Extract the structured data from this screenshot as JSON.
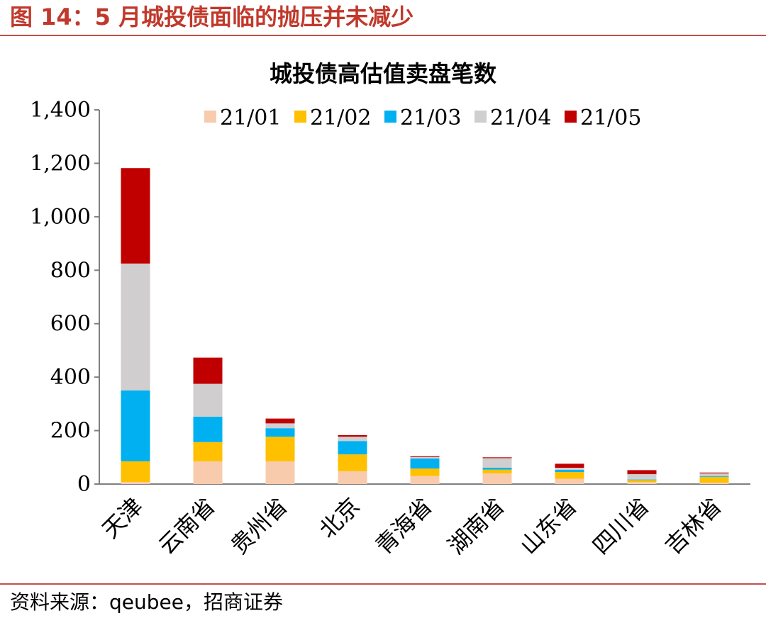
{
  "figure": {
    "title": "图 14：5 月城投债面临的抛压并未减少",
    "source": "资料来源：qeubee，招商证券"
  },
  "colors": {
    "accent": "#c0504d",
    "series": [
      "#f8cbad",
      "#ffc000",
      "#00b0f0",
      "#d0cece",
      "#c00000"
    ]
  },
  "chart_data": {
    "type": "bar",
    "stacked": true,
    "title": "城投债高估值卖盘笔数",
    "xlabel": "",
    "ylabel": "",
    "ylim": [
      0,
      1400
    ],
    "yticks": [
      0,
      200,
      400,
      600,
      800,
      1000,
      1200,
      1400
    ],
    "ytick_labels": [
      "0",
      "200",
      "400",
      "600",
      "800",
      "1,000",
      "1,200",
      "1,400"
    ],
    "grid": false,
    "legend": "top",
    "categories": [
      "天津",
      "云南省",
      "贵州省",
      "北京",
      "青海省",
      "湖南省",
      "山东省",
      "四川省",
      "吉林省"
    ],
    "series": [
      {
        "name": "21/01",
        "values": [
          8,
          85,
          85,
          48,
          30,
          40,
          20,
          7,
          5
        ]
      },
      {
        "name": "21/02",
        "values": [
          77,
          72,
          92,
          63,
          28,
          14,
          25,
          8,
          22
        ]
      },
      {
        "name": "21/03",
        "values": [
          265,
          95,
          32,
          50,
          38,
          7,
          8,
          2,
          3
        ]
      },
      {
        "name": "21/04",
        "values": [
          475,
          123,
          18,
          16,
          5,
          36,
          8,
          20,
          10
        ]
      },
      {
        "name": "21/05",
        "values": [
          357,
          98,
          18,
          6,
          3,
          3,
          15,
          15,
          3
        ]
      }
    ]
  }
}
